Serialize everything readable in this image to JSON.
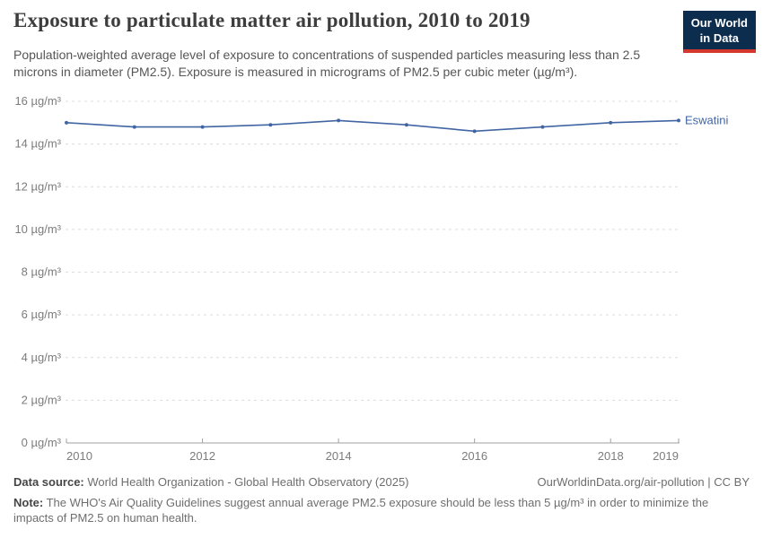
{
  "header": {
    "title": "Exposure to particulate matter air pollution, 2010 to 2019",
    "subtitle": "Population-weighted average level of exposure to concentrations of suspended particles measuring less than 2.5 microns in diameter (PM2.5). Exposure is measured in micrograms of PM2.5 per cubic meter (µg/m³).",
    "logo": {
      "line1": "Our World",
      "line2": "in Data",
      "bg_color": "#0d2d4e",
      "accent_color": "#d4382d"
    }
  },
  "chart_data": {
    "type": "line",
    "title": "Exposure to particulate matter air pollution, 2010 to 2019",
    "x": [
      2010,
      2011,
      2012,
      2013,
      2014,
      2015,
      2016,
      2017,
      2018,
      2019
    ],
    "series": [
      {
        "name": "Eswatini",
        "values": [
          15.0,
          14.8,
          14.8,
          14.9,
          15.1,
          14.9,
          14.6,
          14.8,
          15.0,
          15.1
        ],
        "color": "#4165a3"
      }
    ],
    "xlim": [
      2010,
      2019
    ],
    "ylim": [
      0,
      16
    ],
    "yticks": [
      0,
      2,
      4,
      6,
      8,
      10,
      12,
      14,
      16
    ],
    "ytick_suffix": " µg/m³",
    "xticks": [
      2010,
      2012,
      2014,
      2016,
      2018,
      2019
    ],
    "grid": "horizontal-dashed",
    "grid_color": "#dcdcdc",
    "axis_color": "#a1a1a1",
    "tick_color": "#7c7c7c",
    "legend_position": "end-of-line"
  },
  "footer": {
    "datasource_label": "Data source:",
    "datasource_text": " World Health Organization - Global Health Observatory (2025)",
    "rights_text": "OurWorldinData.org/air-pollution | CC BY",
    "note_label": "Note:",
    "note_text": " The WHO's Air Quality Guidelines suggest annual average PM2.5 exposure should be less than 5 µg/m³ in order to minimize the impacts of PM2.5 on human health."
  }
}
